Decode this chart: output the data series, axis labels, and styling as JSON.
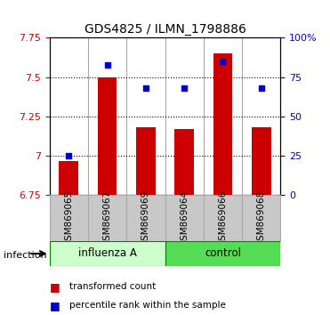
{
  "title": "GDS4825 / ILMN_1798886",
  "samples": [
    "GSM869065",
    "GSM869067",
    "GSM869069",
    "GSM869064",
    "GSM869066",
    "GSM869068"
  ],
  "group_labels": [
    "influenza A",
    "control"
  ],
  "bar_values": [
    6.97,
    7.5,
    7.18,
    7.17,
    7.65,
    7.18
  ],
  "percentile_values": [
    25,
    83,
    68,
    68,
    85,
    68
  ],
  "bar_bottom": 6.75,
  "ylim_left": [
    6.75,
    7.75
  ],
  "yticks_left": [
    6.75,
    7.0,
    7.25,
    7.5,
    7.75
  ],
  "ytick_labels_left": [
    "6.75",
    "7",
    "7.25",
    "7.5",
    "7.75"
  ],
  "ylim_right": [
    0,
    100
  ],
  "yticks_right": [
    0,
    25,
    50,
    75,
    100
  ],
  "ytick_labels_right": [
    "0",
    "25",
    "50",
    "75",
    "100%"
  ],
  "bar_color": "#CC0000",
  "dot_color": "#0000CC",
  "bar_width": 0.5,
  "grid_lines": [
    7.0,
    7.25,
    7.5
  ],
  "legend_bar_label": "transformed count",
  "legend_dot_label": "percentile rank within the sample",
  "infection_label": "infection",
  "group_bg_color_light": "#CCFFCC",
  "group_bg_color_dark": "#55DD55",
  "tick_label_color_left": "#CC0000",
  "tick_label_color_right": "#0000CC"
}
